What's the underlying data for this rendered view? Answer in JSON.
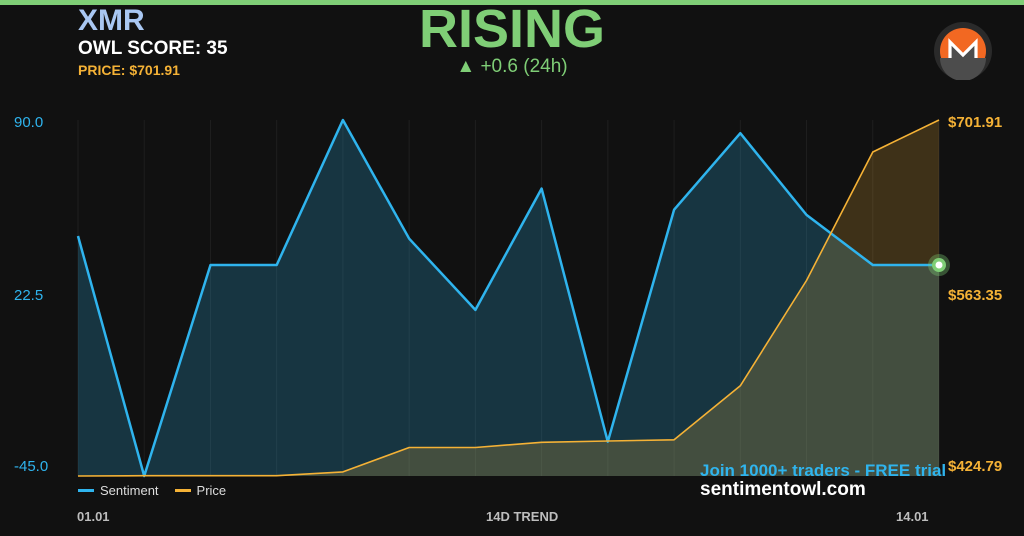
{
  "header": {
    "ticker": "XMR",
    "owl_score": "OWL SCORE: 35",
    "price": "PRICE: $701.91",
    "trend": "RISING",
    "change": "▲ +0.6 (24h)"
  },
  "logo": {
    "icon": "monero-logo-icon",
    "colors": {
      "orange": "#f26822",
      "dark": "#4c4c4c"
    }
  },
  "promo": {
    "text": "Join 1000+ traders - FREE trial",
    "site": "sentimentowl.com"
  },
  "colors": {
    "sentiment": "#2fb4ee",
    "price": "#f5b236",
    "accent": "#7fce76",
    "background": "#111111"
  },
  "chart_data": {
    "type": "line",
    "title": "",
    "xlabel": "14D TREND",
    "x_ticks": [
      "01.01",
      "14.01"
    ],
    "points": 14,
    "legend": {
      "placement": "bottom-left",
      "entries": [
        "Sentiment",
        "Price"
      ]
    },
    "y_left": {
      "ticks": [
        "90.0",
        "22.5",
        "-45.0"
      ],
      "range": [
        -45,
        90
      ]
    },
    "y_right": {
      "ticks": [
        "$701.91",
        "$563.35",
        "$424.79"
      ],
      "range": [
        424.79,
        701.91
      ]
    },
    "series": [
      {
        "name": "Sentiment",
        "axis": "left",
        "values": [
          46,
          -45,
          35,
          35,
          90,
          45,
          18,
          64,
          -32,
          56,
          85,
          54,
          35,
          35
        ]
      },
      {
        "name": "Price",
        "axis": "right",
        "values": [
          424.79,
          425,
          425,
          425,
          428,
          447,
          447,
          451,
          452,
          453,
          495,
          577,
          677,
          701.91
        ]
      }
    ],
    "grid": "vertical"
  }
}
